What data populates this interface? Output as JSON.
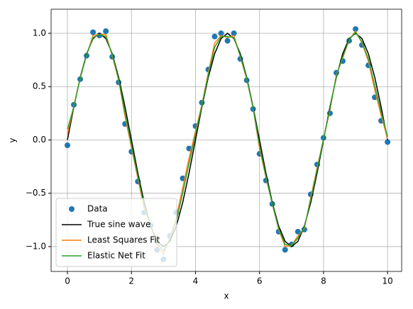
{
  "chart_data": {
    "type": "line",
    "xlabel": "x",
    "ylabel": "y",
    "x": [
      0,
      0.2,
      0.4,
      0.6,
      0.8,
      1.0,
      1.2,
      1.4,
      1.6,
      1.8,
      2.0,
      2.2,
      2.4,
      2.6,
      2.8,
      3.0,
      3.2,
      3.4,
      3.6,
      3.8,
      4.0,
      4.2,
      4.4,
      4.6,
      4.8,
      5.0,
      5.2,
      5.4,
      5.6,
      5.8,
      6.0,
      6.2,
      6.4,
      6.6,
      6.8,
      7.0,
      7.2,
      7.4,
      7.6,
      7.8,
      8.0,
      8.2,
      8.4,
      8.6,
      8.8,
      9.0,
      9.2,
      9.4,
      9.6,
      9.8,
      10.0
    ],
    "series": [
      {
        "name": "Data",
        "color": "#1f77b4",
        "style": "markers",
        "values": [
          -0.05,
          0.33,
          0.57,
          0.79,
          1.01,
          0.98,
          1.02,
          0.78,
          0.54,
          0.15,
          -0.11,
          -0.39,
          -0.68,
          -0.8,
          -1.03,
          -1.12,
          -0.9,
          -0.68,
          -0.36,
          -0.08,
          0.13,
          0.35,
          0.66,
          0.97,
          1.0,
          0.93,
          1.0,
          0.76,
          0.56,
          0.29,
          -0.13,
          -0.38,
          -0.6,
          -0.86,
          -1.03,
          -0.98,
          -0.86,
          -0.84,
          -0.51,
          -0.23,
          0.02,
          0.25,
          0.63,
          0.74,
          0.93,
          1.04,
          0.89,
          0.7,
          0.4,
          0.18,
          -0.02
        ]
      },
      {
        "name": "True sine wave",
        "color": "#000000",
        "style": "line",
        "values": [
          0,
          0.309,
          0.588,
          0.809,
          0.951,
          1,
          0.951,
          0.809,
          0.588,
          0.309,
          0,
          -0.309,
          -0.588,
          -0.809,
          -0.951,
          -1,
          -0.951,
          -0.809,
          -0.588,
          -0.309,
          0,
          0.309,
          0.588,
          0.809,
          0.951,
          1,
          0.951,
          0.809,
          0.588,
          0.309,
          0,
          -0.309,
          -0.588,
          -0.809,
          -0.951,
          -1,
          -0.951,
          -0.809,
          -0.588,
          -0.309,
          0,
          0.309,
          0.588,
          0.809,
          0.951,
          1,
          0.951,
          0.809,
          0.588,
          0.309,
          0
        ]
      },
      {
        "name": "Least Squares Fit",
        "color": "#ff7f0e",
        "style": "line",
        "values": [
          0.05,
          0.32,
          0.58,
          0.8,
          0.98,
          0.99,
          0.99,
          0.79,
          0.56,
          0.22,
          -0.07,
          -0.36,
          -0.64,
          -0.8,
          -0.99,
          -1.07,
          -0.92,
          -0.73,
          -0.45,
          -0.17,
          0.08,
          0.33,
          0.63,
          0.91,
          0.98,
          0.96,
          0.98,
          0.78,
          0.57,
          0.3,
          -0.08,
          -0.35,
          -0.6,
          -0.84,
          -1.0,
          -0.99,
          -0.9,
          -0.83,
          -0.54,
          -0.26,
          0.01,
          0.28,
          0.61,
          0.77,
          0.94,
          1.02,
          0.91,
          0.74,
          0.47,
          0.23,
          0.01
        ]
      },
      {
        "name": "Elastic Net Fit",
        "color": "#2ca02c",
        "style": "line",
        "values": [
          0.1,
          0.31,
          0.58,
          0.8,
          0.96,
          0.99,
          0.97,
          0.8,
          0.57,
          0.25,
          -0.05,
          -0.34,
          -0.62,
          -0.8,
          -0.97,
          -1.04,
          -0.93,
          -0.76,
          -0.5,
          -0.22,
          0.05,
          0.32,
          0.61,
          0.87,
          0.97,
          0.97,
          0.96,
          0.79,
          0.58,
          0.3,
          -0.05,
          -0.34,
          -0.6,
          -0.83,
          -0.98,
          -0.99,
          -0.92,
          -0.82,
          -0.56,
          -0.28,
          0.01,
          0.29,
          0.6,
          0.78,
          0.94,
          1.01,
          0.92,
          0.76,
          0.51,
          0.26,
          0.03
        ]
      }
    ],
    "xlim": [
      -0.51,
      10.44
    ],
    "ylim": [
      -1.233,
      1.226
    ],
    "xticks": [
      0,
      2,
      4,
      6,
      8,
      10
    ],
    "yticks": [
      {
        "value": -1,
        "label": "−1.0"
      },
      {
        "value": -0.5,
        "label": "−0.5"
      },
      {
        "value": 0,
        "label": "0.0"
      },
      {
        "value": 0.5,
        "label": "0.5"
      },
      {
        "value": 1,
        "label": "1.0"
      }
    ],
    "grid": true,
    "legend": "lower left"
  }
}
